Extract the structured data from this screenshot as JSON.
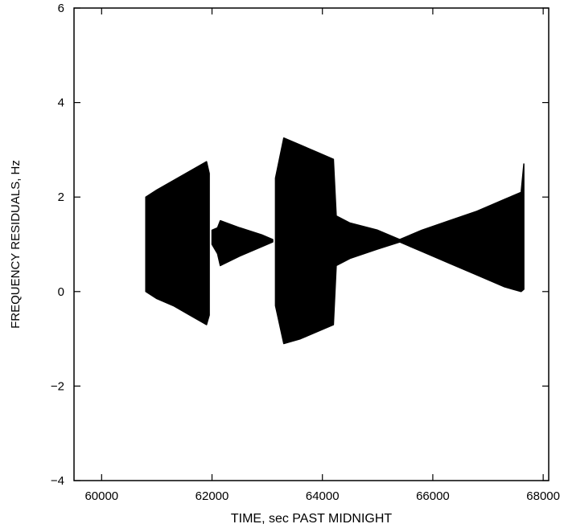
{
  "chart_data": {
    "type": "area",
    "title": "",
    "xlabel": "TIME, sec PAST MIDNIGHT",
    "ylabel": "FREQUENCY RESIDUALS, Hz",
    "xlim": [
      59500,
      68100
    ],
    "ylim": [
      -4,
      6
    ],
    "xticks": [
      60000,
      62000,
      64000,
      66000,
      68000
    ],
    "yticks": [
      -4,
      -2,
      0,
      2,
      4,
      6
    ],
    "xtick_labels": [
      "60000",
      "62000",
      "64000",
      "66000",
      "68000"
    ],
    "ytick_labels": [
      "−4",
      "−2",
      "0",
      "2",
      "4",
      "6"
    ],
    "grid": false,
    "color": "#000000",
    "segments": [
      {
        "x": [
          60800,
          61000,
          61300,
          61600,
          61900,
          61950
        ],
        "upper": [
          2.0,
          2.15,
          2.35,
          2.55,
          2.75,
          2.5
        ],
        "lower": [
          0.0,
          -0.15,
          -0.3,
          -0.5,
          -0.7,
          -0.5
        ]
      },
      {
        "x": [
          62000,
          62100,
          62150,
          62500,
          62900,
          63100
        ],
        "upper": [
          1.3,
          1.35,
          1.5,
          1.35,
          1.2,
          1.1
        ],
        "lower": [
          1.0,
          0.8,
          0.55,
          0.75,
          0.95,
          1.05
        ]
      },
      {
        "x": [
          63150,
          63300,
          63600,
          63900,
          64200,
          64250,
          64500,
          65000,
          65400
        ],
        "upper": [
          2.4,
          3.25,
          3.1,
          2.95,
          2.8,
          1.6,
          1.45,
          1.3,
          1.1
        ],
        "lower": [
          -0.3,
          -1.1,
          -1.0,
          -0.85,
          -0.7,
          0.55,
          0.7,
          0.9,
          1.05
        ]
      },
      {
        "x": [
          65400,
          65800,
          66300,
          66800,
          67300,
          67600,
          67650
        ],
        "upper": [
          1.1,
          1.3,
          1.5,
          1.7,
          1.95,
          2.1,
          2.7
        ],
        "lower": [
          1.05,
          0.85,
          0.6,
          0.35,
          0.1,
          0.0,
          0.05
        ]
      }
    ]
  }
}
